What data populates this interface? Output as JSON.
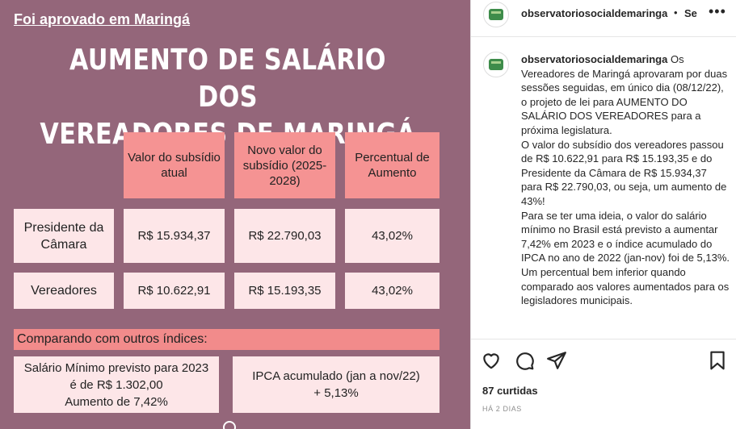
{
  "post": {
    "kicker": "Foi aprovado em Maringá",
    "headline_line1": "AUMENTO DE SALÁRIO DOS",
    "headline_line2": "VEREADORES DE MARINGÁ",
    "table": {
      "headers": [
        "Valor do subsídio atual",
        "Novo valor do subsídio (2025-2028)",
        "Percentual de Aumento"
      ],
      "rows": [
        {
          "label": "Presidente da Câmara",
          "current": "R$ 15.934,37",
          "new": "R$ 22.790,03",
          "percent": "43,02%"
        },
        {
          "label": "Vereadores",
          "current": "R$ 10.622,91",
          "new": "R$ 15.193,35",
          "percent": "43,02%"
        }
      ]
    },
    "compare_title": "Comparando com outros índices:",
    "minimum_wage": {
      "line1": "Salário Mínimo previsto para 2023",
      "line2": "é de R$ 1.302,00",
      "line3": "Aumento de 7,42%"
    },
    "ipca": {
      "line1": "IPCA acumulado (jan a nov/22)",
      "line2": "+ 5,13%"
    }
  },
  "sidebar": {
    "username": "observatoriosocialdemaringa",
    "separator": "•",
    "follow_label": "Se",
    "more_label": "•••",
    "caption_user": "observatoriosocialdemaringa",
    "caption_text": " Os Vereadores de Maringá aprovaram por duas sessões seguidas, em único dia (08/12/22), o projeto de lei para AUMENTO DO SALÁRIO DOS VEREADORES para a próxima legislatura.",
    "caption_p2": "O valor do subsídio dos vereadores passou de R$ 10.622,91 para R$ 15.193,35 e do Presidente da Câmara de R$ 15.934,37 para R$ 22.790,03, ou seja, um aumento de 43%!",
    "caption_p3": "Para se ter uma ideia, o valor do salário mínimo no Brasil está previsto a aumentar 7,42% em 2023 e o índice acumulado do IPCA no ano de 2022 (jan-nov) foi de 5,13%. Um percentual bem inferior quando comparado aos valores aumentados para os legisladores municipais.",
    "likes": "87 curtidas",
    "time": "HÁ 2 DIAS",
    "icons": [
      "heart-icon",
      "comment-icon",
      "share-icon",
      "bookmark-icon"
    ]
  }
}
